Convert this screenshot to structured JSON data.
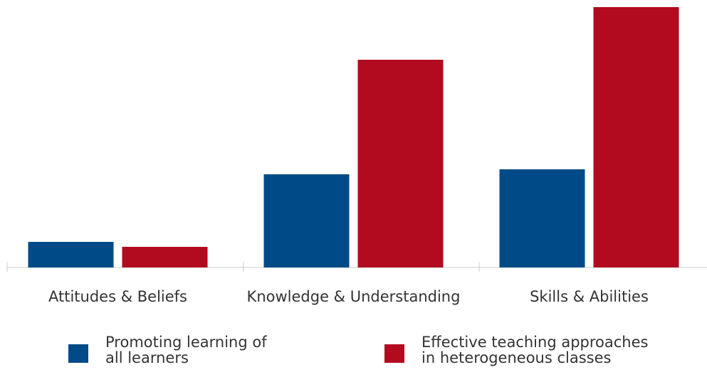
{
  "chart_data": {
    "type": "bar",
    "categories": [
      "Attitudes & Beliefs",
      "Knowledge & Understanding",
      "Skills & Abilities"
    ],
    "series": [
      {
        "name": "Promoting learning of all learners",
        "color": "#004b87",
        "values": [
          36,
          131,
          138
        ]
      },
      {
        "name": "Effective teaching approaches in heterogeneous classes",
        "color": "#b20a1e",
        "values": [
          29,
          292,
          366
        ]
      }
    ],
    "ylim": [
      0,
      366
    ],
    "legend": "bottom"
  }
}
